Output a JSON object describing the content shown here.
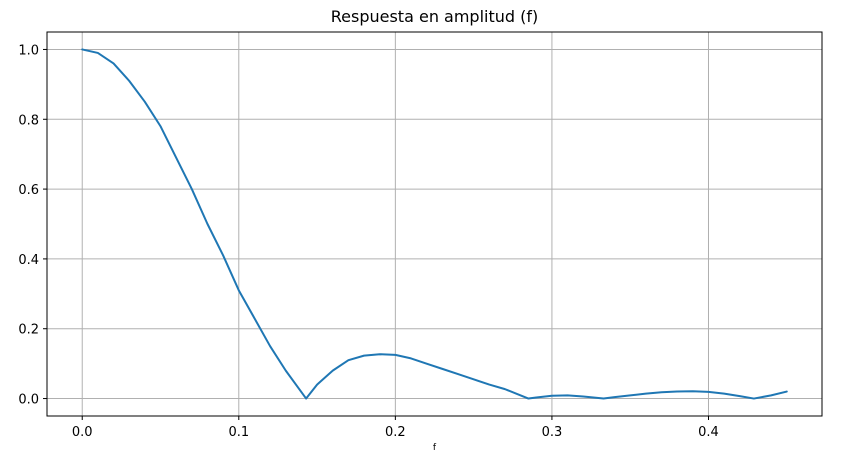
{
  "chart_data": {
    "type": "line",
    "title": "Respuesta en amplitud (f)",
    "xlabel": "f",
    "ylabel": "",
    "xlim": [
      -0.0225,
      0.4725
    ],
    "ylim": [
      -0.05,
      1.05
    ],
    "xticks": [
      0.0,
      0.1,
      0.2,
      0.3,
      0.4
    ],
    "xtick_labels": [
      "0.0",
      "0.1",
      "0.2",
      "0.3",
      "0.4"
    ],
    "yticks": [
      0.0,
      0.2,
      0.4,
      0.6,
      0.8,
      1.0
    ],
    "ytick_labels": [
      "0.0",
      "0.2",
      "0.4",
      "0.6",
      "0.8",
      "1.0"
    ],
    "grid": true,
    "series": [
      {
        "color": "#1f77b4",
        "x": [
          0.0,
          0.01,
          0.02,
          0.03,
          0.04,
          0.05,
          0.06,
          0.07,
          0.08,
          0.09,
          0.1,
          0.11,
          0.12,
          0.13,
          0.143,
          0.15,
          0.16,
          0.17,
          0.18,
          0.19,
          0.2,
          0.21,
          0.22,
          0.23,
          0.24,
          0.25,
          0.26,
          0.27,
          0.285,
          0.29,
          0.3,
          0.31,
          0.32,
          0.333,
          0.34,
          0.35,
          0.36,
          0.37,
          0.38,
          0.39,
          0.4,
          0.41,
          0.42,
          0.429,
          0.44,
          0.45
        ],
        "y": [
          1.0,
          0.99,
          0.96,
          0.91,
          0.85,
          0.78,
          0.69,
          0.6,
          0.5,
          0.41,
          0.31,
          0.23,
          0.15,
          0.08,
          0.0,
          0.04,
          0.08,
          0.11,
          0.123,
          0.127,
          0.125,
          0.115,
          0.1,
          0.085,
          0.07,
          0.055,
          0.04,
          0.027,
          0.0,
          0.003,
          0.008,
          0.009,
          0.006,
          0.0,
          0.004,
          0.009,
          0.014,
          0.018,
          0.02,
          0.021,
          0.019,
          0.014,
          0.007,
          0.0,
          0.009,
          0.02
        ]
      }
    ]
  }
}
